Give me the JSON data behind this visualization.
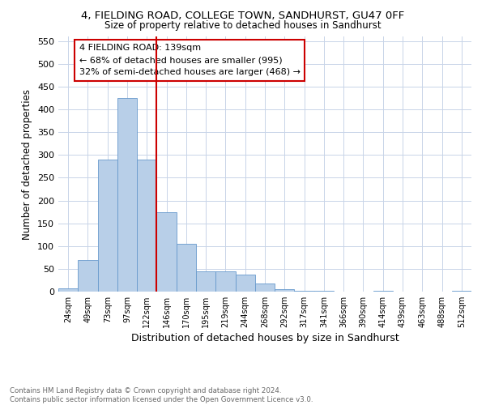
{
  "title": "4, FIELDING ROAD, COLLEGE TOWN, SANDHURST, GU47 0FF",
  "subtitle": "Size of property relative to detached houses in Sandhurst",
  "xlabel": "Distribution of detached houses by size in Sandhurst",
  "ylabel": "Number of detached properties",
  "bar_labels": [
    "24sqm",
    "49sqm",
    "73sqm",
    "97sqm",
    "122sqm",
    "146sqm",
    "170sqm",
    "195sqm",
    "219sqm",
    "244sqm",
    "268sqm",
    "292sqm",
    "317sqm",
    "341sqm",
    "366sqm",
    "390sqm",
    "414sqm",
    "439sqm",
    "463sqm",
    "488sqm",
    "512sqm"
  ],
  "bar_values": [
    8,
    70,
    290,
    425,
    290,
    175,
    105,
    44,
    44,
    37,
    18,
    5,
    2,
    1,
    0,
    0,
    2,
    0,
    0,
    0,
    2
  ],
  "bar_color": "#b8cfe8",
  "bar_edge_color": "#6699cc",
  "vline_color": "#cc0000",
  "annotation_text": "4 FIELDING ROAD: 139sqm\n← 68% of detached houses are smaller (995)\n32% of semi-detached houses are larger (468) →",
  "annotation_box_color": "#ffffff",
  "annotation_box_edge": "#cc0000",
  "ylim": [
    0,
    560
  ],
  "yticks": [
    0,
    50,
    100,
    150,
    200,
    250,
    300,
    350,
    400,
    450,
    500,
    550
  ],
  "footnote": "Contains HM Land Registry data © Crown copyright and database right 2024.\nContains public sector information licensed under the Open Government Licence v3.0.",
  "background_color": "#ffffff",
  "grid_color": "#c8d4e8"
}
